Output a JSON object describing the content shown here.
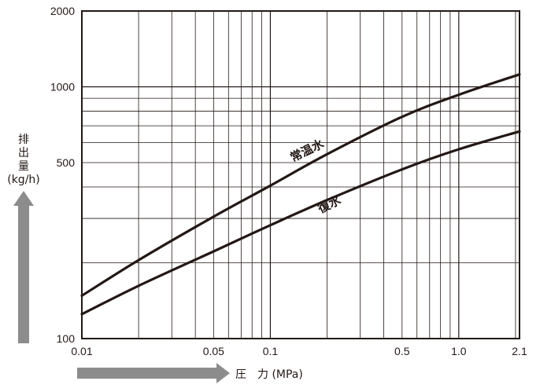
{
  "chart_data": {
    "type": "line",
    "xscale": "log",
    "yscale": "log",
    "xlim": [
      0.01,
      2.1
    ],
    "ylim": [
      100,
      2000
    ],
    "grid": true,
    "xlabel": "圧　力 (MPa)",
    "ylabel_lines": [
      "排",
      "出",
      "量",
      "(kg/h)"
    ],
    "xticks": [
      {
        "value": 0.01,
        "label": "0.01"
      },
      {
        "value": 0.05,
        "label": "0.05"
      },
      {
        "value": 0.1,
        "label": "0.1"
      },
      {
        "value": 0.5,
        "label": "0.5"
      },
      {
        "value": 1.0,
        "label": "1.0"
      },
      {
        "value": 2.1,
        "label": "2.1"
      }
    ],
    "yticks": [
      {
        "value": 100,
        "label": "100"
      },
      {
        "value": 500,
        "label": "500"
      },
      {
        "value": 1000,
        "label": "1000"
      },
      {
        "value": 2000,
        "label": "2000"
      }
    ],
    "series": [
      {
        "name": "常温水",
        "label_at": {
          "x": 0.16,
          "y": 540
        },
        "points": [
          [
            0.01,
            148
          ],
          [
            0.02,
            205
          ],
          [
            0.05,
            305
          ],
          [
            0.1,
            405
          ],
          [
            0.2,
            540
          ],
          [
            0.5,
            760
          ],
          [
            1.0,
            930
          ],
          [
            2.1,
            1120
          ]
        ]
      },
      {
        "name": "復水",
        "label_at": {
          "x": 0.21,
          "y": 330
        },
        "points": [
          [
            0.01,
            125
          ],
          [
            0.02,
            162
          ],
          [
            0.05,
            222
          ],
          [
            0.1,
            282
          ],
          [
            0.2,
            355
          ],
          [
            0.5,
            470
          ],
          [
            1.0,
            565
          ],
          [
            2.1,
            665
          ]
        ]
      }
    ],
    "colors": {
      "line": "#231815",
      "grid": "#231815",
      "arrow": "#8c8c8c"
    }
  }
}
